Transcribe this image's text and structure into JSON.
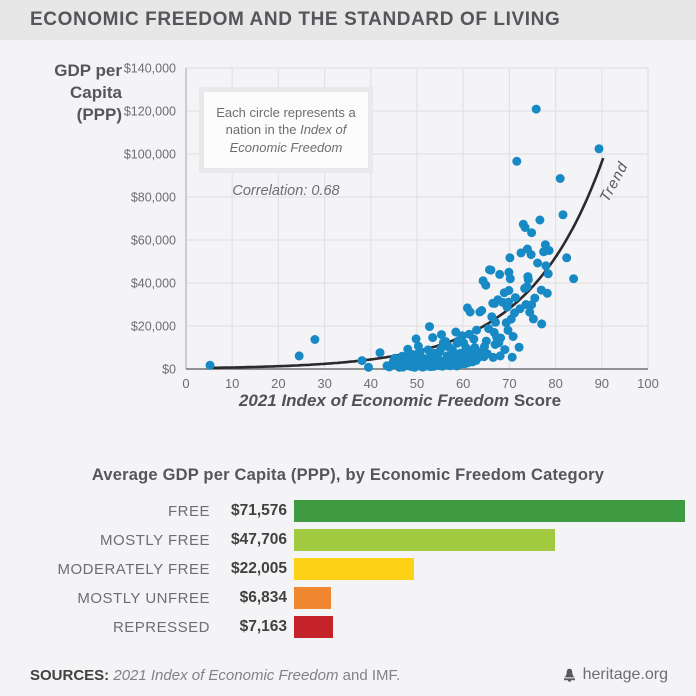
{
  "header": {
    "title": "ECONOMIC FREEDOM AND THE STANDARD OF LIVING"
  },
  "scatter_section": {
    "y_axis_label": "GDP per Capita (PPP)",
    "annotation_plain": "Each circle represents a nation in the ",
    "annotation_italic": "Index of Economic Freedom",
    "correlation": "Correlation: 0.68",
    "trend_label": "Trend",
    "x_axis_title_italic": "2021 Index of Economic Freedom",
    "x_axis_title_regular": " Score"
  },
  "bar_section": {
    "title": "Average GDP per Capita (PPP), by Economic Freedom Category"
  },
  "footer": {
    "sources_bold": "SOURCES:",
    "sources_italic": " 2021 Index of Economic Freedom",
    "sources_tail": " and IMF.",
    "brand": "heritage.org"
  },
  "colors": {
    "dot_blue": "#1789c4",
    "trend_black": "#2b2b2e",
    "grid": "#e2e2e6",
    "axis_left": "#b6b8bb",
    "axis_bottom": "#707174",
    "tick_text": "#6d6e71"
  },
  "chart_data": [
    {
      "type": "scatter",
      "title": "Economic Freedom and the Standard of Living",
      "xlabel": "2021 Index of Economic Freedom Score",
      "ylabel": "GDP per Capita (PPP)",
      "xlim": [
        0,
        100
      ],
      "ylim": [
        0,
        140000
      ],
      "grid": true,
      "x_ticks": [
        0,
        10,
        20,
        30,
        40,
        50,
        60,
        70,
        80,
        90,
        100
      ],
      "y_ticks": [
        0,
        20000,
        40000,
        60000,
        80000,
        100000,
        120000,
        140000
      ],
      "y_tick_labels": [
        "$0",
        "$20,000",
        "$40,000",
        "$60,000",
        "$80,000",
        "$100,000",
        "$120,000",
        "$140,000"
      ],
      "correlation": 0.68,
      "trend": {
        "type": "exponential",
        "a": 380,
        "b": 0.0615,
        "x_from": 4.8,
        "x_to": 90.3
      },
      "points": [
        [
          5.2,
          1700
        ],
        [
          24.5,
          6100
        ],
        [
          27.9,
          13700
        ],
        [
          38.1,
          3900
        ],
        [
          39.5,
          800
        ],
        [
          42,
          7600
        ],
        [
          43.5,
          1500
        ],
        [
          44,
          1000
        ],
        [
          44.7,
          2200
        ],
        [
          44.9,
          3600
        ],
        [
          45.2,
          5000
        ],
        [
          45.6,
          2800
        ],
        [
          46,
          1200
        ],
        [
          46.2,
          800
        ],
        [
          46.5,
          3300
        ],
        [
          46.8,
          5900
        ],
        [
          47,
          900
        ],
        [
          47.3,
          2400
        ],
        [
          47.5,
          1700
        ],
        [
          47.8,
          5400
        ],
        [
          48,
          9200
        ],
        [
          48.2,
          1500
        ],
        [
          48.5,
          3900
        ],
        [
          48.8,
          1100
        ],
        [
          48.9,
          2000
        ],
        [
          49,
          2300
        ],
        [
          49.1,
          6700
        ],
        [
          49.2,
          5100
        ],
        [
          49.4,
          3000
        ],
        [
          49.5,
          800
        ],
        [
          49.8,
          14000
        ],
        [
          50,
          2900
        ],
        [
          50.2,
          1500
        ],
        [
          50.3,
          10600
        ],
        [
          50.5,
          3600
        ],
        [
          50.6,
          7800
        ],
        [
          50.8,
          2100
        ],
        [
          51,
          5300
        ],
        [
          51.1,
          1000
        ],
        [
          51.3,
          900
        ],
        [
          51.5,
          2500
        ],
        [
          51.7,
          4700
        ],
        [
          51.9,
          2000
        ],
        [
          52,
          1400
        ],
        [
          52.2,
          3100
        ],
        [
          52.4,
          8900
        ],
        [
          52.5,
          5000
        ],
        [
          52.7,
          19700
        ],
        [
          52.9,
          1100
        ],
        [
          53,
          2300
        ],
        [
          53.2,
          5500
        ],
        [
          53.4,
          14600
        ],
        [
          53.6,
          1200
        ],
        [
          53.7,
          7300
        ],
        [
          53.9,
          3400
        ],
        [
          54.1,
          2100
        ],
        [
          54.4,
          6200
        ],
        [
          54.6,
          1600
        ],
        [
          54.8,
          4100
        ],
        [
          54.9,
          8100
        ],
        [
          55,
          2700
        ],
        [
          55.2,
          9500
        ],
        [
          55.3,
          16000
        ],
        [
          55.5,
          1300
        ],
        [
          55.7,
          12200
        ],
        [
          55.9,
          2000
        ],
        [
          56,
          3700
        ],
        [
          56.2,
          12800
        ],
        [
          56.5,
          6100
        ],
        [
          56.6,
          1800
        ],
        [
          56.8,
          2200
        ],
        [
          56.9,
          10300
        ],
        [
          57,
          4600
        ],
        [
          57.2,
          1500
        ],
        [
          57.3,
          2500
        ],
        [
          57.5,
          3200
        ],
        [
          57.7,
          8700
        ],
        [
          57.8,
          5600
        ],
        [
          58,
          2600
        ],
        [
          58.2,
          3000
        ],
        [
          58.4,
          17200
        ],
        [
          58.6,
          1400
        ],
        [
          58.7,
          12000
        ],
        [
          58.9,
          5000
        ],
        [
          59,
          13200
        ],
        [
          59.1,
          2000
        ],
        [
          59.4,
          7300
        ],
        [
          59.6,
          3500
        ],
        [
          59.8,
          15500
        ],
        [
          59.9,
          4100
        ],
        [
          60,
          5800
        ],
        [
          60.1,
          12100
        ],
        [
          60.3,
          2400
        ],
        [
          60.5,
          6800
        ],
        [
          60.6,
          9900
        ],
        [
          60.9,
          28400
        ],
        [
          61,
          2900
        ],
        [
          61.2,
          4300
        ],
        [
          61.3,
          16200
        ],
        [
          61.5,
          26500
        ],
        [
          61.7,
          8300
        ],
        [
          62,
          3300
        ],
        [
          62.3,
          13900
        ],
        [
          62.5,
          10000
        ],
        [
          62.6,
          6500
        ],
        [
          62.8,
          4000
        ],
        [
          62.9,
          18100
        ],
        [
          63.2,
          5200
        ],
        [
          63.6,
          26500
        ],
        [
          63.8,
          7000
        ],
        [
          64,
          27200
        ],
        [
          64.1,
          8300
        ],
        [
          64.3,
          41000
        ],
        [
          64.5,
          5700
        ],
        [
          64.6,
          10400
        ],
        [
          64.9,
          39000
        ],
        [
          65,
          13000
        ],
        [
          65.2,
          7100
        ],
        [
          65.5,
          18800
        ],
        [
          65.7,
          46200
        ],
        [
          66,
          46000
        ],
        [
          66.2,
          24300
        ],
        [
          66.4,
          30600
        ],
        [
          66.5,
          5400
        ],
        [
          66.7,
          17000
        ],
        [
          66.8,
          30500
        ],
        [
          66.9,
          11400
        ],
        [
          67,
          21700
        ],
        [
          67.2,
          14900
        ],
        [
          67.5,
          32200
        ],
        [
          67.7,
          12200
        ],
        [
          67.9,
          44000
        ],
        [
          68,
          6100
        ],
        [
          68.1,
          14400
        ],
        [
          68.6,
          31000
        ],
        [
          68.9,
          35500
        ],
        [
          69,
          9000
        ],
        [
          69.3,
          21500
        ],
        [
          69.5,
          28800
        ],
        [
          69.7,
          18000
        ],
        [
          69.8,
          31100
        ],
        [
          69.9,
          36500
        ],
        [
          69.9,
          45000
        ],
        [
          70.1,
          51700
        ],
        [
          70.2,
          42000
        ],
        [
          70.4,
          23200
        ],
        [
          70.6,
          5500
        ],
        [
          70.8,
          15100
        ],
        [
          71.1,
          26100
        ],
        [
          71.3,
          33200
        ],
        [
          71.6,
          96600
        ],
        [
          72.1,
          10100
        ],
        [
          72.3,
          28000
        ],
        [
          72.5,
          54000
        ],
        [
          73,
          67300
        ],
        [
          73.3,
          37500
        ],
        [
          73.4,
          65800
        ],
        [
          73.6,
          30000
        ],
        [
          73.8,
          38300
        ],
        [
          73.9,
          55800
        ],
        [
          74,
          43000
        ],
        [
          74.1,
          41600
        ],
        [
          74.4,
          26400
        ],
        [
          74.7,
          53200
        ],
        [
          74.8,
          63400
        ],
        [
          74.8,
          29900
        ],
        [
          75.2,
          23300
        ],
        [
          75.5,
          33000
        ],
        [
          75.8,
          120900
        ],
        [
          76.1,
          49300
        ],
        [
          76.6,
          69300
        ],
        [
          76.9,
          36700
        ],
        [
          77,
          21000
        ],
        [
          77.4,
          54500
        ],
        [
          77.8,
          57800
        ],
        [
          77.9,
          48000
        ],
        [
          78.2,
          35200
        ],
        [
          78.4,
          44300
        ],
        [
          78.6,
          55100
        ],
        [
          81,
          88600
        ],
        [
          81.6,
          71700
        ],
        [
          82.4,
          51700
        ],
        [
          83.9,
          42000
        ],
        [
          89.4,
          102400
        ]
      ]
    },
    {
      "type": "bar",
      "title": "Average GDP per Capita (PPP), by Economic Freedom Category",
      "categories": [
        "FREE",
        "MOSTLY FREE",
        "MODERATELY FREE",
        "MOSTLY UNFREE",
        "REPRESSED"
      ],
      "values": [
        71576,
        47706,
        22005,
        6834,
        7163
      ],
      "value_labels": [
        "$71,576",
        "$47,706",
        "$22,005",
        "$6,834",
        "$7,163"
      ],
      "colors": [
        "#3f9b41",
        "#a2ca3e",
        "#fdd116",
        "#f0862f",
        "#c5232a"
      ],
      "orientation": "horizontal",
      "xlim": [
        0,
        71576
      ]
    }
  ]
}
